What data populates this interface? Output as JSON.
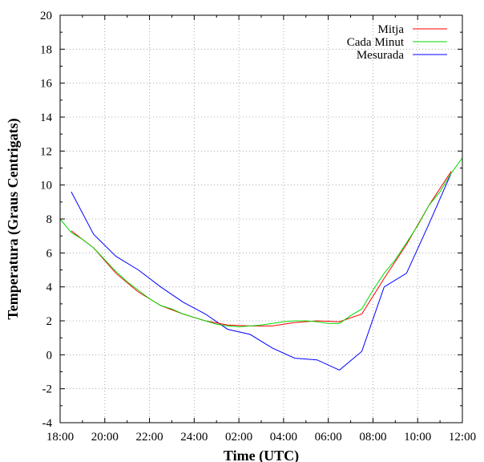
{
  "chart_data": {
    "type": "line",
    "title": "",
    "xlabel": "Time (UTC)",
    "ylabel": "Temperatura (Graus Centrigats)",
    "xlim": [
      0,
      18
    ],
    "ylim": [
      -4,
      20
    ],
    "x_tick_labels": [
      "18:00",
      "20:00",
      "22:00",
      "24:00",
      "02:00",
      "04:00",
      "06:00",
      "08:00",
      "10:00",
      "12:00"
    ],
    "y_tick_labels": [
      "-4",
      "-2",
      "0",
      "2",
      "4",
      "6",
      "8",
      "10",
      "12",
      "14",
      "16",
      "18",
      "20"
    ],
    "grid": true,
    "legend_position": "top-right",
    "x_unit": "hours since 18:00",
    "series": [
      {
        "name": "Mitja",
        "color": "#ff0000",
        "x": [
          0.5,
          1.5,
          2.5,
          3.5,
          4.5,
          5.5,
          6.5,
          7.5,
          8.5,
          9.5,
          10.5,
          11.5,
          12.5,
          13.5,
          14.5,
          15.5,
          16.5,
          17.5
        ],
        "y": [
          7.3,
          6.3,
          4.8,
          3.7,
          2.9,
          2.4,
          2.0,
          1.75,
          1.7,
          1.7,
          1.9,
          2.0,
          1.95,
          2.4,
          4.5,
          6.5,
          8.8,
          10.8
        ]
      },
      {
        "name": "Cada Minut",
        "color": "#00dd00",
        "x": [
          0,
          0.5,
          1,
          1.5,
          2,
          2.5,
          3,
          3.5,
          4,
          4.5,
          5,
          5.5,
          6,
          6.5,
          7,
          7.5,
          8,
          8.5,
          9,
          9.5,
          10,
          10.5,
          11,
          11.5,
          12,
          12.5,
          13,
          13.5,
          14,
          14.5,
          15,
          15.5,
          16,
          16.5,
          17,
          17.5,
          18
        ],
        "y": [
          8.0,
          7.2,
          6.8,
          6.3,
          5.6,
          4.9,
          4.3,
          3.8,
          3.3,
          2.9,
          2.7,
          2.4,
          2.2,
          2.0,
          1.8,
          1.7,
          1.65,
          1.7,
          1.75,
          1.85,
          1.95,
          2.0,
          2.0,
          1.95,
          1.85,
          1.85,
          2.3,
          2.7,
          3.8,
          4.8,
          5.6,
          6.6,
          7.6,
          8.8,
          9.6,
          10.7,
          11.6
        ]
      },
      {
        "name": "Mesurada",
        "color": "#0000ff",
        "x": [
          0.5,
          1.5,
          2.5,
          3.5,
          4.5,
          5.5,
          6.5,
          7.5,
          8.5,
          9.5,
          10.5,
          11.5,
          12.5,
          13.5,
          14.5,
          15.5,
          16.5,
          17.5
        ],
        "y": [
          9.6,
          7.1,
          5.8,
          5.0,
          4.0,
          3.1,
          2.4,
          1.5,
          1.2,
          0.4,
          -0.2,
          -0.3,
          -0.9,
          0.2,
          4.0,
          4.8,
          7.7,
          10.7
        ]
      }
    ]
  }
}
